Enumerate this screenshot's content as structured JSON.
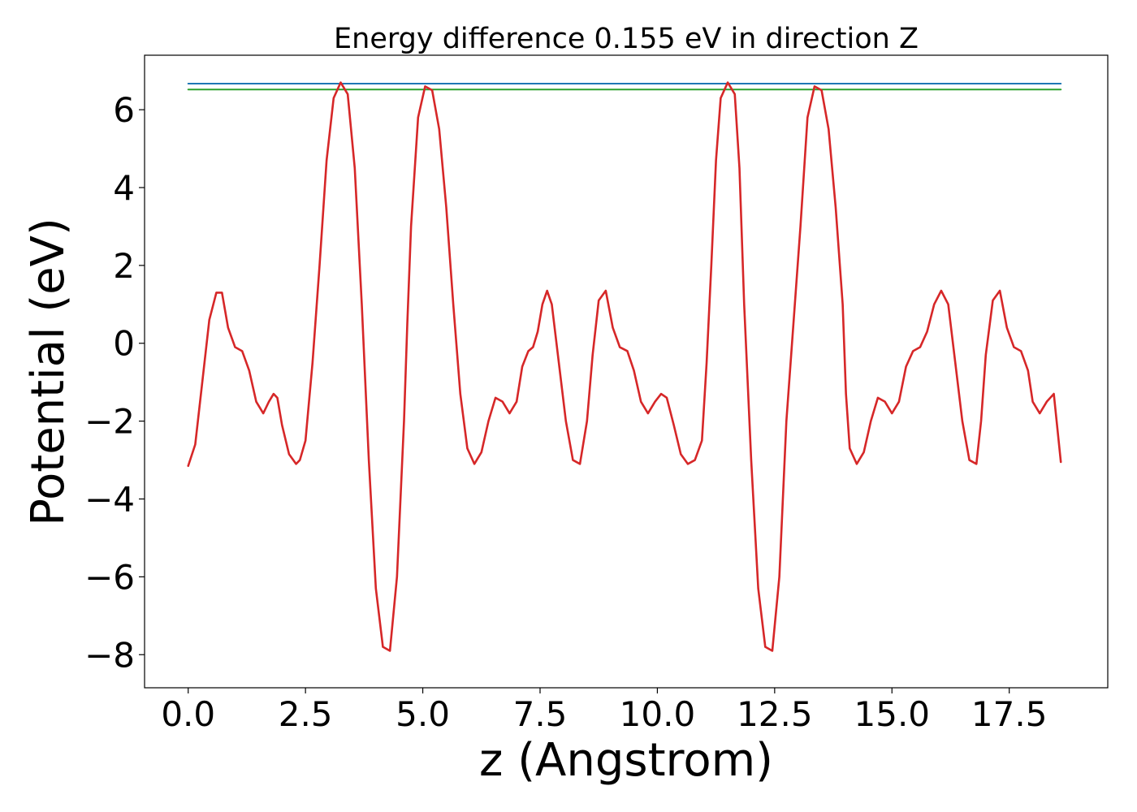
{
  "chart_data": {
    "type": "line",
    "title": "Energy difference 0.155 eV in direction Z",
    "xlabel": "z (Angstrom)",
    "ylabel": "Potential (eV)",
    "xlim": [
      -0.93,
      19.6
    ],
    "ylim": [
      -8.85,
      7.4
    ],
    "xticks": [
      0.0,
      2.5,
      5.0,
      7.5,
      10.0,
      12.5,
      15.0,
      17.5
    ],
    "xtick_labels": [
      "0.0",
      "2.5",
      "5.0",
      "7.5",
      "10.0",
      "12.5",
      "15.0",
      "17.5"
    ],
    "yticks": [
      -8,
      -6,
      -4,
      -2,
      0,
      2,
      4,
      6
    ],
    "ytick_labels": [
      "−8",
      "−6",
      "−4",
      "−2",
      "0",
      "2",
      "4",
      "6"
    ],
    "grid": false,
    "series": [
      {
        "color": "#1f77b4",
        "x": [
          0.0,
          18.6
        ],
        "y": [
          6.67,
          6.67
        ]
      },
      {
        "color": "#2ca02c",
        "x": [
          0.0,
          18.6
        ],
        "y": [
          6.52,
          6.52
        ]
      },
      {
        "color": "#d62728",
        "x": [
          0.0,
          0.15,
          0.3,
          0.45,
          0.6,
          0.72,
          0.85,
          1.0,
          1.15,
          1.3,
          1.45,
          1.6,
          1.72,
          1.82,
          1.9,
          2.0,
          2.15,
          2.3,
          2.38,
          2.5,
          2.65,
          2.8,
          2.95,
          3.1,
          3.25,
          3.4,
          3.55,
          3.7,
          3.85,
          4.0,
          4.15,
          4.3,
          4.45,
          4.6,
          4.67,
          4.75,
          4.9,
          5.05,
          5.2,
          5.35,
          5.5,
          5.65,
          5.8,
          5.95,
          6.1,
          6.25,
          6.4,
          6.55,
          6.7,
          6.85,
          7.0,
          7.12,
          7.25,
          7.35,
          7.45,
          7.55,
          7.65,
          7.75,
          7.9,
          8.05,
          8.2,
          8.35,
          8.5,
          8.62,
          8.75,
          8.9,
          9.05,
          9.2,
          9.36,
          9.5,
          9.65,
          9.8,
          9.95,
          10.08,
          10.2,
          10.35,
          10.5,
          10.65,
          10.8,
          10.95,
          11.05,
          11.15,
          11.25,
          11.35,
          11.5,
          11.65,
          11.75,
          11.85,
          12.0,
          12.15,
          12.3,
          12.45,
          12.6,
          12.75,
          12.9,
          13.05,
          13.2,
          13.35,
          13.5,
          13.65,
          13.8,
          13.95,
          14.02,
          14.1,
          14.25,
          14.4,
          14.55,
          14.7,
          14.85,
          15.0,
          15.15,
          15.3,
          15.45,
          15.6,
          15.75,
          15.9,
          16.05,
          16.2,
          16.35,
          16.5,
          16.65,
          16.8,
          16.9,
          17.0,
          17.15,
          17.3,
          17.45,
          17.6,
          17.75,
          17.9,
          18.0,
          18.15,
          18.3,
          18.45,
          18.6
        ],
        "y": [
          -3.15,
          -2.6,
          -1.0,
          0.6,
          1.3,
          1.3,
          0.4,
          -0.1,
          -0.2,
          -0.7,
          -1.5,
          -1.8,
          -1.5,
          -1.3,
          -1.4,
          -2.1,
          -2.85,
          -3.1,
          -3.0,
          -2.5,
          -0.5,
          2.0,
          4.7,
          6.3,
          6.7,
          6.4,
          4.5,
          1.0,
          -3.0,
          -6.3,
          -7.8,
          -7.9,
          -6.0,
          -2.0,
          0.5,
          3.0,
          5.8,
          6.6,
          6.5,
          5.5,
          3.5,
          1.0,
          -1.3,
          -2.7,
          -3.1,
          -2.8,
          -2.0,
          -1.4,
          -1.5,
          -1.8,
          -1.5,
          -0.6,
          -0.2,
          -0.1,
          0.3,
          1.0,
          1.35,
          1.0,
          -0.5,
          -2.0,
          -3.0,
          -3.1,
          -2.0,
          -0.3,
          1.1,
          1.35,
          0.4,
          -0.1,
          -0.2,
          -0.7,
          -1.5,
          -1.8,
          -1.5,
          -1.3,
          -1.4,
          -2.1,
          -2.85,
          -3.1,
          -3.0,
          -2.5,
          -0.5,
          2.0,
          4.7,
          6.3,
          6.7,
          6.4,
          4.5,
          1.0,
          -3.0,
          -6.3,
          -7.8,
          -7.9,
          -6.0,
          -2.0,
          0.5,
          3.0,
          5.8,
          6.6,
          6.5,
          5.5,
          3.5,
          1.0,
          -1.3,
          -2.7,
          -3.1,
          -2.8,
          -2.0,
          -1.4,
          -1.5,
          -1.8,
          -1.5,
          -0.6,
          -0.2,
          -0.1,
          0.3,
          1.0,
          1.35,
          1.0,
          -0.5,
          -2.0,
          -3.0,
          -3.1,
          -2.0,
          -0.3,
          1.1,
          1.35,
          0.4,
          -0.1,
          -0.2,
          -0.7,
          -1.5,
          -1.8,
          -1.5,
          -1.3,
          -3.05
        ]
      }
    ]
  }
}
